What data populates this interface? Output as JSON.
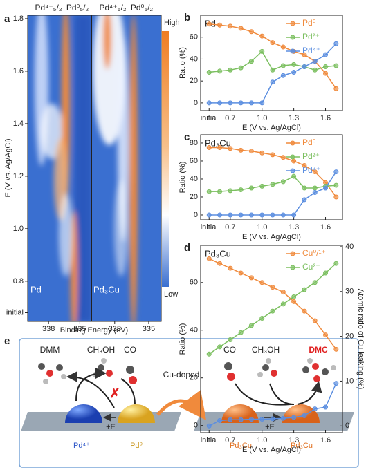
{
  "chart_data": [
    {
      "type": "heatmap",
      "panel_label": "a",
      "ylabel": "E (V vs. Ag/AgCl)",
      "xlabel": "Binding Energy (eV)",
      "panels": [
        {
          "label": "Pd"
        },
        {
          "label": "Pd₃Cu"
        }
      ],
      "annotations": [
        "Pd⁴⁺₅/₂",
        "Pd⁰₅/₂"
      ],
      "colorbar": {
        "high": "High",
        "low": "Low"
      },
      "xlim": [
        340,
        333.9
      ],
      "xticks": [
        338,
        335
      ],
      "ylim": [
        0.647,
        1.813
      ],
      "yticks": [
        {
          "value": 0.68,
          "label": "initial"
        },
        0.8,
        {
          "value": 1,
          "label": "1.0"
        },
        1.2,
        1.4,
        1.6,
        1.8
      ]
    },
    {
      "type": "line",
      "panel_label": "b",
      "title": "Pd",
      "xlabel": "E (V vs. Ag/AgCl)",
      "ylabel": "Ratio (%)",
      "legend": "upper right",
      "x": [
        0.5,
        0.6,
        0.7,
        0.8,
        0.9,
        1.0,
        1.1,
        1.2,
        1.3,
        1.4,
        1.5,
        1.6,
        1.7
      ],
      "xlim": [
        0.42,
        1.76
      ],
      "xticks": [
        {
          "value": 0.5,
          "label": "initial"
        },
        0.7,
        {
          "value": 1,
          "label": "1.0"
        },
        1.3,
        1.6
      ],
      "ylim": [
        -7,
        80
      ],
      "yticks": [
        0,
        20,
        40,
        60
      ],
      "series": [
        {
          "name": "Pd⁰",
          "color": "#f08a3c",
          "values": [
            72,
            71,
            70,
            68,
            65,
            61,
            55,
            51,
            47,
            44,
            38,
            27,
            13
          ]
        },
        {
          "name": "Pd²⁺",
          "color": "#7bbf5f",
          "values": [
            28,
            29,
            30,
            32,
            38,
            47,
            30,
            34,
            35,
            33,
            30,
            33,
            34
          ]
        },
        {
          "name": "Pd⁴⁺",
          "color": "#5b8ee0",
          "values": [
            0,
            0,
            0,
            0,
            0,
            0,
            19,
            25,
            28,
            33,
            38,
            44,
            54
          ]
        }
      ]
    },
    {
      "type": "line",
      "panel_label": "c",
      "title": "Pd₃Cu",
      "xlabel": "E (V vs. Ag/AgCl)",
      "ylabel": "Ratio (%)",
      "legend": "upper right",
      "x": [
        0.5,
        0.6,
        0.7,
        0.8,
        0.9,
        1.0,
        1.1,
        1.2,
        1.3,
        1.4,
        1.5,
        1.6,
        1.7
      ],
      "xlim": [
        0.42,
        1.76
      ],
      "xticks": [
        {
          "value": 0.5,
          "label": "initial"
        },
        0.7,
        {
          "value": 1,
          "label": "1.0"
        },
        1.3,
        1.6
      ],
      "ylim": [
        -5.4,
        89.2
      ],
      "yticks": [
        0,
        20,
        40,
        60,
        80
      ],
      "series": [
        {
          "name": "Pd⁰",
          "color": "#f08a3c",
          "values": [
            75,
            75,
            74,
            72,
            71,
            69,
            67,
            64,
            60,
            55,
            48,
            36,
            20
          ]
        },
        {
          "name": "Pd²⁺",
          "color": "#7bbf5f",
          "values": [
            26,
            26,
            27,
            28,
            30,
            32,
            34,
            37,
            43,
            30,
            30,
            32,
            33
          ]
        },
        {
          "name": "Pd⁴⁺",
          "color": "#5b8ee0",
          "values": [
            0,
            0,
            0,
            0,
            0,
            0,
            0,
            0,
            0,
            17,
            25,
            30,
            48
          ]
        }
      ]
    },
    {
      "type": "line",
      "panel_label": "d",
      "title": "Pd₃Cu",
      "xlabel": "E (V vs. Ag/AgCl)",
      "ylabel": "Ratio (%)",
      "y2label": "Atomic ratio of Cu leaking (%)",
      "legend": "upper right",
      "x": [
        0.5,
        0.6,
        0.7,
        0.8,
        0.9,
        1.0,
        1.1,
        1.2,
        1.3,
        1.4,
        1.5,
        1.6,
        1.7
      ],
      "xlim": [
        0.42,
        1.76
      ],
      "xticks": [
        {
          "value": 0.5,
          "label": "initial"
        },
        0.7,
        {
          "value": 1,
          "label": "1.0"
        },
        1.3,
        1.6
      ],
      "ylim": [
        -3,
        75.6
      ],
      "yticks": [
        0,
        20,
        40,
        60
      ],
      "y2lim": [
        -1.5,
        40.3
      ],
      "y2ticks": [
        0,
        10,
        20,
        30,
        40
      ],
      "series": [
        {
          "name": "Cu⁰/¹⁺",
          "color": "#f08a3c",
          "values": [
            70,
            68,
            66,
            64,
            62,
            60,
            58,
            56,
            52,
            48,
            44,
            38,
            32
          ]
        },
        {
          "name": "Cu²⁺",
          "color": "#7bbf5f",
          "values": [
            30,
            33,
            36,
            39,
            42,
            45,
            48,
            51,
            54,
            57,
            60,
            64,
            68
          ]
        },
        {
          "color": "#5b8ee0",
          "axis": "y2",
          "values": [
            0,
            1.2,
            1.4,
            1.4,
            1.5,
            1.5,
            1.6,
            1.7,
            1.9,
            2.3,
            3.8,
            4.2,
            9.5
          ]
        }
      ]
    }
  ],
  "scheme": {
    "panel_label": "e",
    "left_molecules": [
      "DMM",
      "CH₃OH",
      "CO"
    ],
    "right_molecules": [
      "CO",
      "CH₃OH",
      "DMC"
    ],
    "transition": "Cu-doped",
    "arrow_left": "+E",
    "arrow_right": "+E",
    "left_sites": [
      "Pd⁴⁺",
      "Pd⁰"
    ],
    "right_sites": [
      "Pd₃Cu",
      "Pd₃Cu"
    ]
  }
}
